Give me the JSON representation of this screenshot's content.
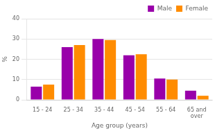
{
  "chart_data": {
    "type": "bar",
    "categories": [
      "15 - 24",
      "25 - 34",
      "35 - 44",
      "45 - 54",
      "55 - 64",
      "65 and\nover"
    ],
    "series": [
      {
        "name": "Male",
        "color": "#9900AA",
        "values": [
          6.5,
          26.0,
          30.0,
          22.0,
          10.5,
          4.5
        ]
      },
      {
        "name": "Female",
        "color": "#FF8C00",
        "values": [
          7.5,
          27.0,
          29.5,
          22.5,
          10.0,
          2.0
        ]
      }
    ],
    "xlabel": "Age group (years)",
    "ylabel": "%",
    "ylim": [
      0,
      40
    ],
    "yticks": [
      0,
      10,
      20,
      30,
      40
    ],
    "grid": true,
    "legend": "upper right"
  }
}
